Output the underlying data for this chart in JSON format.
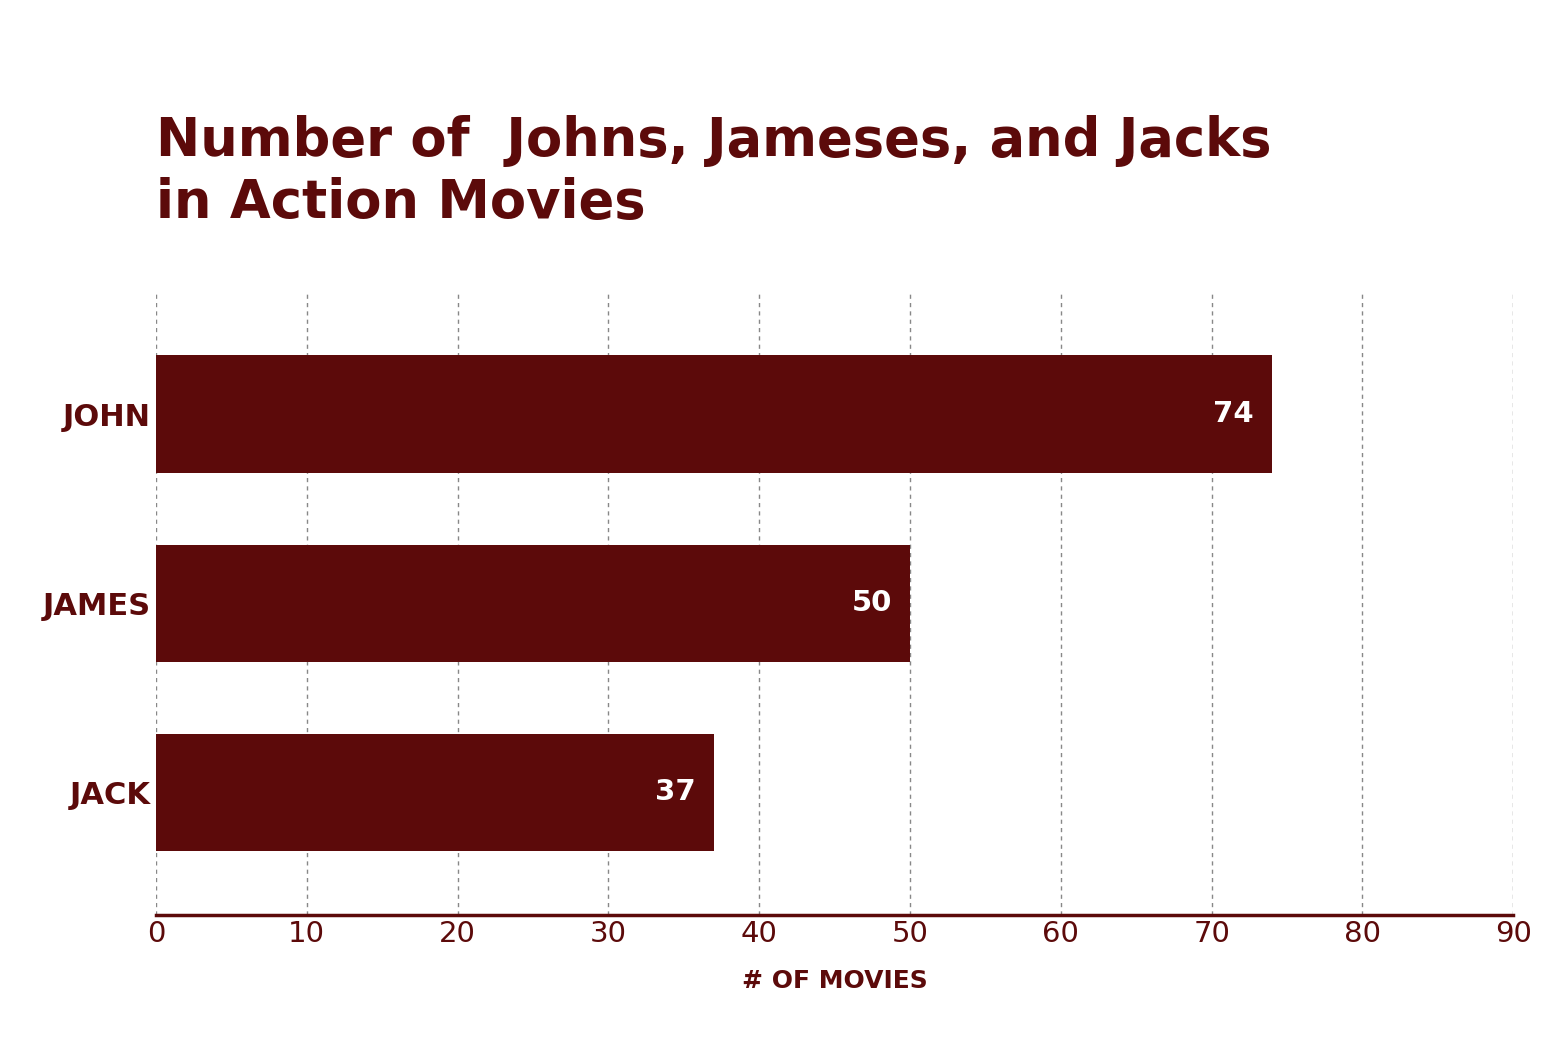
{
  "title_line1": "Number of  Johns, Jameses, and Jacks",
  "title_line2": "in Action Movies",
  "categories": [
    "JOHN",
    "JAMES",
    "JACK"
  ],
  "values": [
    74,
    50,
    37
  ],
  "bar_color": "#5C0A0A",
  "label_color": "#FFFFFF",
  "title_color": "#5C0A0A",
  "tick_color": "#5C0A0A",
  "xlabel": "# OF MOVIES",
  "xlim": [
    0,
    90
  ],
  "xticks": [
    0,
    10,
    20,
    30,
    40,
    50,
    60,
    70,
    80,
    90
  ],
  "background_color": "#FFFFFF",
  "grid_color": "#555555",
  "bar_height": 0.62,
  "title_fontsize": 38,
  "label_fontsize": 22,
  "tick_fontsize": 21,
  "xlabel_fontsize": 18,
  "value_fontsize": 21
}
